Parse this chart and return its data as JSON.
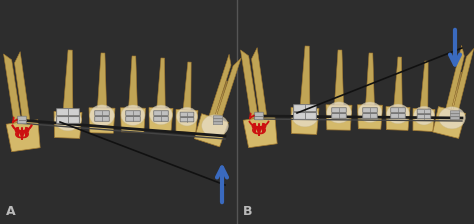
{
  "bg_color": "#2d2d2d",
  "tooth_color": "#d4b96a",
  "tooth_shadow": "#c0a455",
  "tooth_edge_color": "#a07830",
  "bracket_color": "#c0c0c0",
  "bracket_edge_color": "#777777",
  "wire_color": "#1a1a1a",
  "arrow_color": "#3a6abf",
  "trident_color": "#cc1111",
  "label_color": "#bbbbbb",
  "label_A": "A",
  "label_B": "B",
  "fig_width": 4.74,
  "fig_height": 2.24,
  "dpi": 100
}
